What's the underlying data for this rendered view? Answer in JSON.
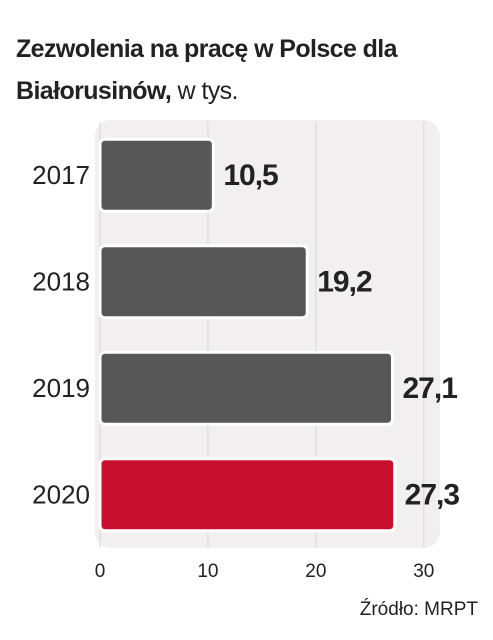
{
  "chart_data": {
    "type": "bar",
    "orientation": "horizontal",
    "title": "Zezwolenia na pracę w Polsce dla Białorusinów,",
    "subtitle": "w tys.",
    "categories": [
      "2017",
      "2018",
      "2019",
      "2020"
    ],
    "values": [
      10.5,
      19.2,
      27.1,
      27.3
    ],
    "value_labels": [
      "10,5",
      "19,2",
      "27,1",
      "27,3"
    ],
    "colors": [
      "#575757",
      "#575757",
      "#575757",
      "#c8102e"
    ],
    "xlim": [
      0,
      31.5
    ],
    "xticks": [
      0,
      10,
      20,
      30
    ],
    "grid": true,
    "source": "Źródło: MRPT"
  }
}
